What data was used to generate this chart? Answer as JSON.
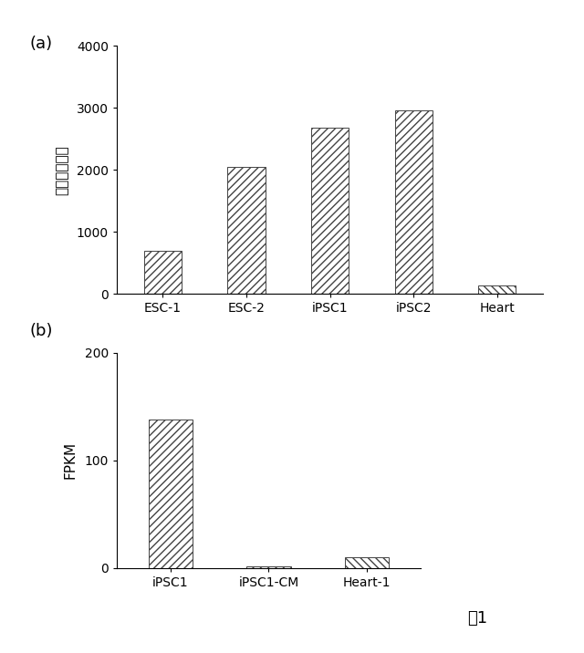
{
  "chart_a": {
    "categories": [
      "ESC-1",
      "ESC-2",
      "iPSC1",
      "iPSC2",
      "Heart"
    ],
    "values": [
      700,
      2050,
      2680,
      2960,
      130
    ],
    "ylabel": "相対的発現量",
    "ylim": [
      0,
      4000
    ],
    "yticks": [
      0,
      1000,
      2000,
      3000,
      4000
    ],
    "label": "(a)"
  },
  "chart_b": {
    "categories": [
      "iPSC1",
      "iPSC1-CM",
      "Heart-1"
    ],
    "values": [
      138,
      2,
      10
    ],
    "ylabel": "FPKM",
    "ylim": [
      0,
      200
    ],
    "yticks": [
      0,
      100,
      200
    ],
    "label": "(b)"
  },
  "fig_label": "図1",
  "bg_color": "#ffffff",
  "bar_face_color": "white",
  "hatch_fwd": "////",
  "hatch_back": "\\\\\\\\",
  "edge_color": "#444444",
  "bar_width": 0.45
}
